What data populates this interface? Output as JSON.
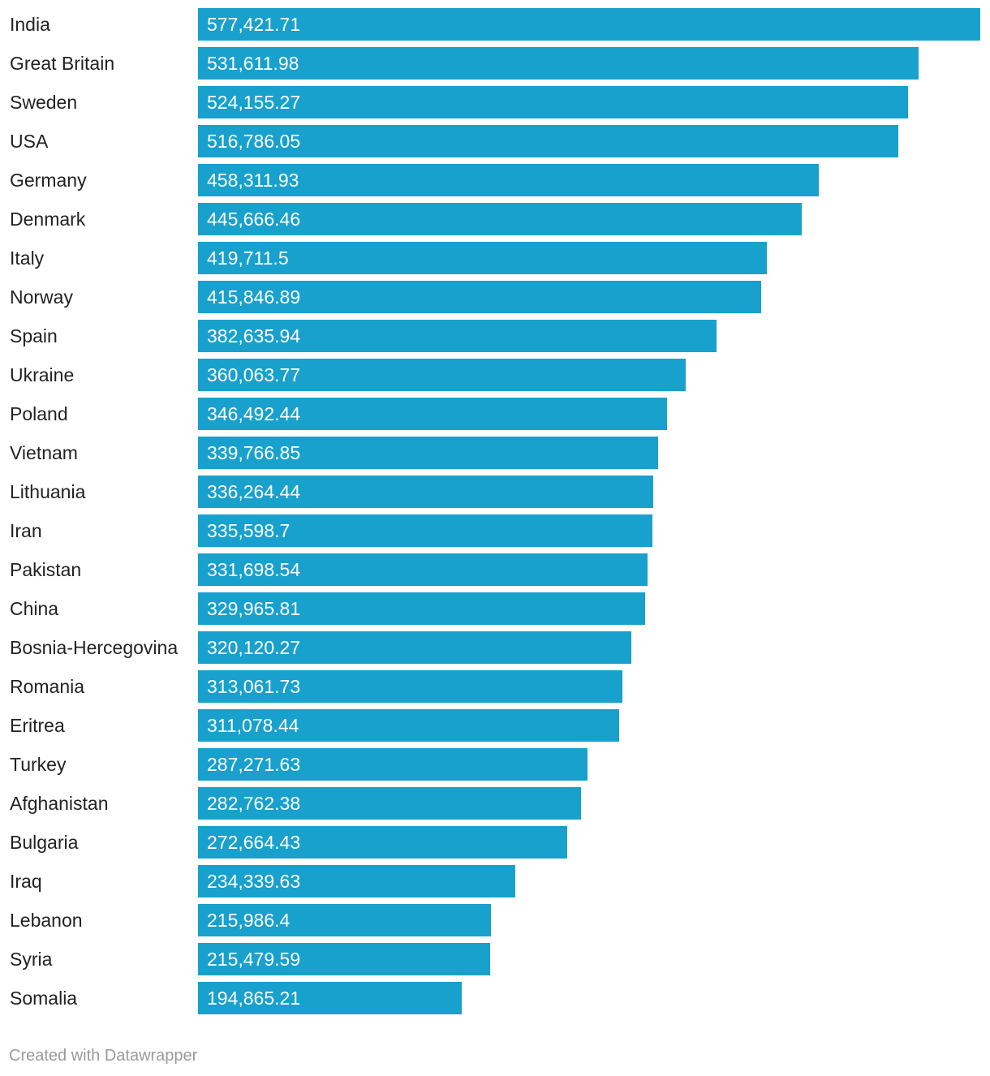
{
  "chart_data": {
    "type": "bar",
    "orientation": "horizontal",
    "bar_color": "#18a1cd",
    "categories": [
      "India",
      "Great Britain",
      "Sweden",
      "USA",
      "Germany",
      "Denmark",
      "Italy",
      "Norway",
      "Spain",
      "Ukraine",
      "Poland",
      "Vietnam",
      "Lithuania",
      "Iran",
      "Pakistan",
      "China",
      "Bosnia-Hercegovina",
      "Romania",
      "Eritrea",
      "Turkey",
      "Afghanistan",
      "Bulgaria",
      "Iraq",
      "Lebanon",
      "Syria",
      "Somalia"
    ],
    "values": [
      577421.71,
      531611.98,
      524155.27,
      516786.05,
      458311.93,
      445666.46,
      419711.5,
      415846.89,
      382635.94,
      360063.77,
      346492.44,
      339766.85,
      336264.44,
      335598.7,
      331698.54,
      329965.81,
      320120.27,
      313061.73,
      311078.44,
      287271.63,
      282762.38,
      272664.43,
      234339.63,
      215986.4,
      215479.59,
      194865.21
    ],
    "value_labels": [
      "577,421.71",
      "531,611.98",
      "524,155.27",
      "516,786.05",
      "458,311.93",
      "445,666.46",
      "419,711.5",
      "415,846.89",
      "382,635.94",
      "360,063.77",
      "346,492.44",
      "339,766.85",
      "336,264.44",
      "335,598.7",
      "331,698.54",
      "329,965.81",
      "320,120.27",
      "313,061.73",
      "311,078.44",
      "287,271.63",
      "282,762.38",
      "272,664.43",
      "234,339.63",
      "215,986.4",
      "215,479.59",
      "194,865.21"
    ],
    "xlim": [
      0,
      577421.71
    ],
    "title": "",
    "xlabel": "",
    "ylabel": ""
  },
  "footer": {
    "credit": "Created with Datawrapper"
  }
}
